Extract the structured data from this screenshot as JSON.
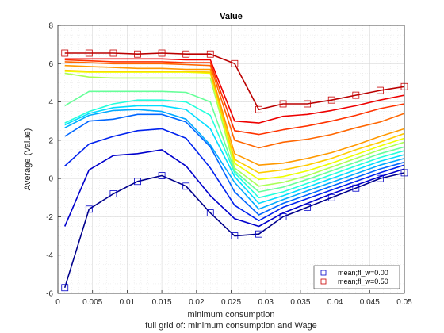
{
  "chart_data": {
    "type": "line",
    "title": "Value",
    "xlabel": "minimum consumption",
    "ylabel": "Average (Value)",
    "caption": "full grid of: minimum consumption and Wage",
    "xlim": [
      0,
      0.05
    ],
    "ylim": [
      -6,
      8
    ],
    "xticks": [
      0,
      0.005,
      0.01,
      0.015,
      0.02,
      0.025,
      0.03,
      0.035,
      0.04,
      0.045,
      0.05
    ],
    "xtick_labels": [
      "0",
      "0.005",
      "0.01",
      "0.015",
      "0.02",
      "0.025",
      "0.03",
      "0.035",
      "0.04",
      "0.045",
      "0.05"
    ],
    "yticks": [
      -6,
      -4,
      -2,
      0,
      2,
      4,
      6,
      8
    ],
    "ytick_labels": [
      "-6",
      "-4",
      "-2",
      "0",
      "2",
      "4",
      "6",
      "8"
    ],
    "grid": true,
    "minor_grid": true,
    "legend_position": "bottom-right",
    "legend": [
      {
        "label": "mean;fl_w=0.00",
        "color": "#0000c8"
      },
      {
        "label": "mean;fl_w=0.50",
        "color": "#c80000"
      }
    ],
    "x": [
      0.001,
      0.0045,
      0.008,
      0.0115,
      0.015,
      0.0185,
      0.022,
      0.0255,
      0.029,
      0.0325,
      0.036,
      0.0395,
      0.043,
      0.0465,
      0.05
    ],
    "marker_series": [
      0,
      15
    ],
    "series": [
      {
        "color": "#00008c",
        "values": [
          -5.7,
          -1.6,
          -0.8,
          -0.15,
          0.15,
          -0.4,
          -1.8,
          -3.0,
          -2.9,
          -2.0,
          -1.5,
          -1.0,
          -0.5,
          0.0,
          0.3
        ]
      },
      {
        "color": "#0000cc",
        "values": [
          -2.5,
          0.45,
          1.2,
          1.3,
          1.5,
          0.65,
          -0.9,
          -2.1,
          -2.5,
          -1.8,
          -1.3,
          -0.8,
          -0.35,
          0.1,
          0.5
        ]
      },
      {
        "color": "#0022ee",
        "values": [
          0.65,
          1.8,
          2.2,
          2.5,
          2.6,
          2.1,
          0.55,
          -1.4,
          -2.2,
          -1.5,
          -1.05,
          -0.6,
          -0.15,
          0.3,
          0.7
        ]
      },
      {
        "color": "#0066ff",
        "values": [
          2.2,
          3.0,
          3.1,
          3.35,
          3.35,
          2.95,
          1.65,
          -0.7,
          -1.9,
          -1.3,
          -0.85,
          -0.4,
          0.05,
          0.5,
          0.85
        ]
      },
      {
        "color": "#00aaff",
        "values": [
          2.65,
          3.3,
          3.55,
          3.6,
          3.5,
          3.1,
          1.75,
          -0.2,
          -1.6,
          -1.1,
          -0.65,
          -0.2,
          0.25,
          0.7,
          1.05
        ]
      },
      {
        "color": "#00ddff",
        "values": [
          2.8,
          3.4,
          3.7,
          3.8,
          3.8,
          3.6,
          2.6,
          0.1,
          -1.3,
          -0.9,
          -0.45,
          0.0,
          0.45,
          0.9,
          1.25
        ]
      },
      {
        "color": "#22ffdd",
        "values": [
          2.9,
          3.5,
          3.9,
          4.1,
          4.1,
          4.0,
          3.3,
          0.3,
          -1.0,
          -0.7,
          -0.25,
          0.2,
          0.65,
          1.1,
          1.45
        ]
      },
      {
        "color": "#66ff99",
        "values": [
          3.8,
          4.55,
          4.55,
          4.55,
          4.55,
          4.5,
          4.0,
          0.4,
          -0.7,
          -0.45,
          -0.05,
          0.4,
          0.85,
          1.3,
          1.65
        ]
      },
      {
        "color": "#aaff55",
        "values": [
          5.5,
          5.3,
          5.25,
          5.25,
          5.25,
          5.25,
          5.25,
          0.55,
          -0.4,
          -0.2,
          0.15,
          0.6,
          1.05,
          1.5,
          1.9
        ]
      },
      {
        "color": "#eeff00",
        "values": [
          5.6,
          5.55,
          5.55,
          5.55,
          5.55,
          5.55,
          5.5,
          0.8,
          -0.05,
          0.1,
          0.4,
          0.8,
          1.25,
          1.7,
          2.1
        ]
      },
      {
        "color": "#ffcc00",
        "values": [
          5.65,
          5.6,
          5.6,
          5.6,
          5.6,
          5.6,
          5.55,
          1.0,
          0.3,
          0.45,
          0.7,
          1.05,
          1.5,
          1.9,
          2.35
        ]
      },
      {
        "color": "#ff9900",
        "values": [
          5.9,
          5.85,
          5.8,
          5.75,
          5.75,
          5.7,
          5.7,
          1.3,
          0.7,
          0.8,
          1.05,
          1.35,
          1.75,
          2.2,
          2.6
        ]
      },
      {
        "color": "#ff6600",
        "values": [
          6.1,
          6.05,
          6.0,
          6.0,
          6.0,
          5.95,
          5.9,
          2.0,
          1.6,
          1.9,
          2.05,
          2.3,
          2.65,
          2.95,
          3.4
        ]
      },
      {
        "color": "#ff3300",
        "values": [
          6.2,
          6.15,
          6.1,
          6.1,
          6.1,
          6.05,
          6.05,
          2.5,
          2.3,
          2.55,
          2.75,
          3.0,
          3.3,
          3.65,
          3.9
        ]
      },
      {
        "color": "#ee0000",
        "values": [
          6.25,
          6.25,
          6.25,
          6.25,
          6.25,
          6.2,
          6.2,
          3.0,
          2.9,
          3.25,
          3.35,
          3.55,
          3.8,
          4.1,
          4.35
        ]
      },
      {
        "color": "#bb0000",
        "values": [
          6.55,
          6.55,
          6.55,
          6.5,
          6.55,
          6.5,
          6.5,
          6.0,
          3.6,
          3.9,
          3.9,
          4.1,
          4.35,
          4.6,
          4.8
        ]
      }
    ]
  }
}
